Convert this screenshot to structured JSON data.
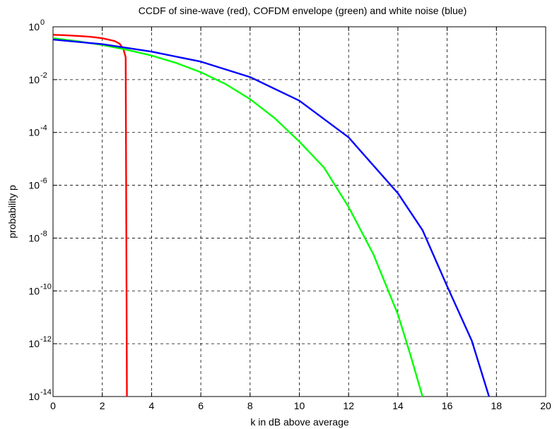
{
  "chart_data": {
    "type": "line",
    "title": "CCDF of sine-wave (red), COFDM envelope (green) and white noise (blue)",
    "xlabel": "k in dB above average",
    "ylabel": "probability p",
    "xlim": [
      0,
      20
    ],
    "ylim": [
      1e-14,
      1
    ],
    "yscale": "log",
    "grid": true,
    "xticks": [
      0,
      2,
      4,
      6,
      8,
      10,
      12,
      14,
      16,
      18,
      20
    ],
    "yticks": [
      {
        "base": "10",
        "exp": "0",
        "value": 1
      },
      {
        "base": "10",
        "exp": "-2",
        "value": 0.01
      },
      {
        "base": "10",
        "exp": "-4",
        "value": 0.0001
      },
      {
        "base": "10",
        "exp": "-6",
        "value": 1e-06
      },
      {
        "base": "10",
        "exp": "-8",
        "value": 1e-08
      },
      {
        "base": "10",
        "exp": "-10",
        "value": 1e-10
      },
      {
        "base": "10",
        "exp": "-12",
        "value": 1e-12
      },
      {
        "base": "10",
        "exp": "-14",
        "value": 1e-14
      }
    ],
    "series": [
      {
        "color": "#ff0000",
        "points": [
          [
            0,
            0.5
          ],
          [
            0.5,
            0.48
          ],
          [
            1.0,
            0.45
          ],
          [
            1.5,
            0.42
          ],
          [
            2.0,
            0.37
          ],
          [
            2.5,
            0.29
          ],
          [
            2.7,
            0.23
          ],
          [
            2.85,
            0.15
          ],
          [
            2.95,
            0.07
          ],
          [
            3.0,
            1e-14
          ]
        ]
      },
      {
        "color": "#00ff00",
        "points": [
          [
            0,
            0.368
          ],
          [
            1,
            0.284
          ],
          [
            2,
            0.206
          ],
          [
            3,
            0.135
          ],
          [
            4,
            0.0816
          ],
          [
            5,
            0.0429
          ],
          [
            6,
            0.0191
          ],
          [
            7,
            0.00684
          ],
          [
            8,
            0.00183
          ],
          [
            9,
            0.000347
          ],
          [
            10,
            4.5e-05
          ],
          [
            11,
            4.7e-06
          ],
          [
            12,
            1.5e-07
          ],
          [
            13,
            2.5e-09
          ],
          [
            14,
            1.3e-11
          ],
          [
            14.5,
            4e-13
          ],
          [
            15,
            1e-14
          ]
        ]
      },
      {
        "color": "#0000ff",
        "points": [
          [
            0,
            0.33
          ],
          [
            2,
            0.22
          ],
          [
            4,
            0.115
          ],
          [
            6,
            0.048
          ],
          [
            8,
            0.0125
          ],
          [
            10,
            0.0016
          ],
          [
            12,
            6.5e-05
          ],
          [
            14,
            5e-07
          ],
          [
            15,
            2e-08
          ],
          [
            16,
            1.5e-10
          ],
          [
            17,
            1.3e-12
          ],
          [
            17.7,
            1e-14
          ]
        ]
      }
    ]
  }
}
